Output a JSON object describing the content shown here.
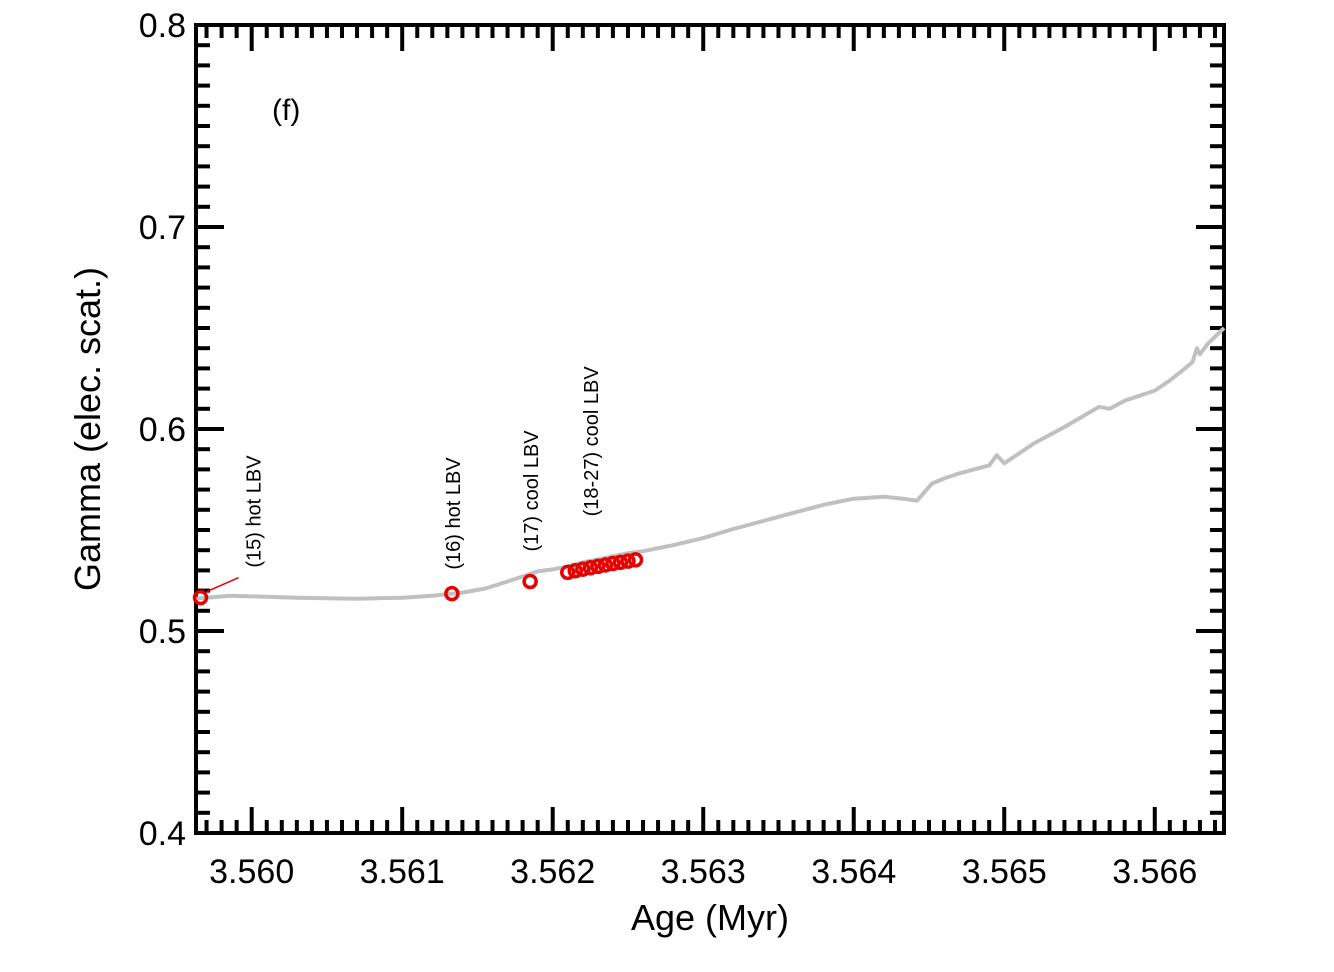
{
  "chart_data": {
    "type": "line",
    "title": "",
    "panel_label": "(f)",
    "xlabel": "Age (Myr)",
    "ylabel": "Gamma (elec. scat.)",
    "xlim": [
      3.55963,
      3.56646
    ],
    "ylim": [
      0.4,
      0.8
    ],
    "x_ticks": [
      3.56,
      3.561,
      3.562,
      3.563,
      3.564,
      3.565,
      3.566
    ],
    "x_tick_labels": [
      "3.560",
      "3.561",
      "3.562",
      "3.563",
      "3.564",
      "3.565",
      "3.566"
    ],
    "y_ticks": [
      0.4,
      0.5,
      0.6,
      0.7,
      0.8
    ],
    "y_tick_labels": [
      "0.4",
      "0.5",
      "0.6",
      "0.7",
      "0.8"
    ],
    "grid": false,
    "line_color": "#c0c0c0",
    "marker_color": "#e60000",
    "series": [
      {
        "kind": "line",
        "x": [
          3.55963,
          3.55985,
          3.5603,
          3.5607,
          3.561,
          3.5612,
          3.5614,
          3.56155,
          3.5617,
          3.5618,
          3.5619,
          3.562,
          3.5621,
          3.5622,
          3.5623,
          3.5624,
          3.5625,
          3.5626,
          3.5628,
          3.563,
          3.5632,
          3.5634,
          3.5636,
          3.5638,
          3.564,
          3.5642,
          3.56433,
          3.56442,
          3.56452,
          3.5646,
          3.5647,
          3.5648,
          3.5649,
          3.56495,
          3.565,
          3.5652,
          3.5654,
          3.56563,
          3.5657,
          3.5658,
          3.566,
          3.5661,
          3.5662,
          3.56625,
          3.56628,
          3.5663,
          3.56635,
          3.56646
        ],
        "y": [
          0.516,
          0.5175,
          0.5165,
          0.516,
          0.5165,
          0.5175,
          0.519,
          0.521,
          0.5245,
          0.527,
          0.5295,
          0.5305,
          0.532,
          0.534,
          0.5355,
          0.537,
          0.5385,
          0.5395,
          0.5425,
          0.546,
          0.5505,
          0.5545,
          0.5585,
          0.5625,
          0.5655,
          0.5665,
          0.5655,
          0.5645,
          0.573,
          0.5755,
          0.578,
          0.58,
          0.582,
          0.587,
          0.583,
          0.593,
          0.601,
          0.611,
          0.61,
          0.614,
          0.619,
          0.624,
          0.63,
          0.633,
          0.64,
          0.637,
          0.642,
          0.65
        ]
      },
      {
        "kind": "scatter",
        "x": [
          3.55966,
          3.56133,
          3.56185,
          3.5621,
          3.56215,
          3.5622,
          3.56225,
          3.5623,
          3.56235,
          3.5624,
          3.56245,
          3.5625,
          3.56255
        ],
        "y": [
          0.5165,
          0.5185,
          0.5245,
          0.529,
          0.5298,
          0.5306,
          0.5313,
          0.532,
          0.5327,
          0.5334,
          0.534,
          0.5346,
          0.5352
        ]
      }
    ],
    "annotations": [
      {
        "text": "(15) hot LBV",
        "x": 3.55966,
        "y": 0.5165
      },
      {
        "text": "(16) hot LBV",
        "x": 3.56133,
        "y": 0.5185
      },
      {
        "text": "(17) cool LBV",
        "x": 3.56185,
        "y": 0.5245
      },
      {
        "text": "(18-27) cool LBV",
        "x": 3.5623,
        "y": 0.532
      }
    ]
  }
}
